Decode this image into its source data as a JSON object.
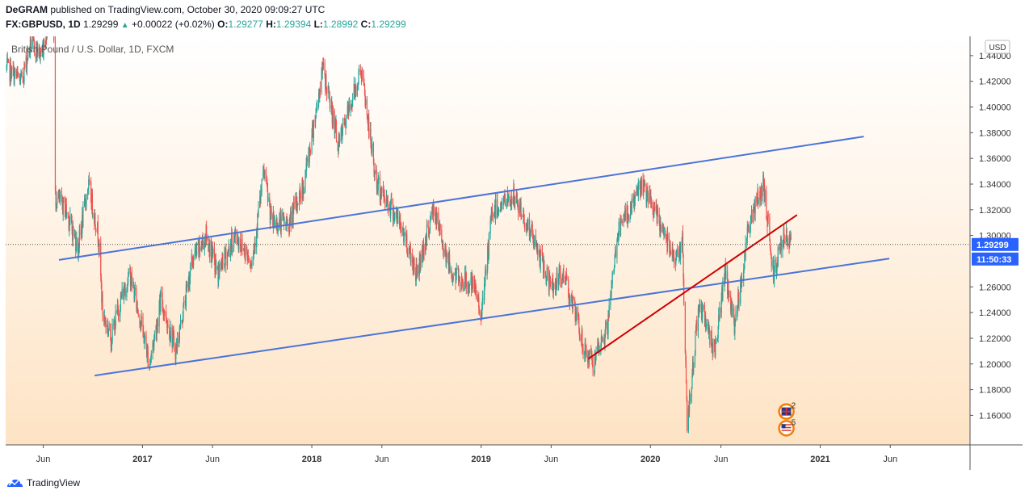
{
  "header": {
    "author": "DeGRAM",
    "published_text": "published on TradingView.com, October 30, 2020 09:09:27 UTC",
    "symbol": "FX:GBPUSD, 1D",
    "last": "1.29299",
    "change": "+0.00022 (+0.02%)",
    "o_label": "O:",
    "o_value": "1.29277",
    "h_label": "H:",
    "h_value": "1.29394",
    "l_label": "L:",
    "l_value": "1.28992",
    "c_label": "C:",
    "c_value": "1.29299"
  },
  "footer": {
    "brand": "TradingView"
  },
  "colors": {
    "bull": "#26a69a",
    "bear": "#ef5350",
    "channel": "#2962ff",
    "trend": "#cc0000",
    "price_badge": "#2962ff"
  },
  "chart_data": {
    "type": "candlestick",
    "title": "British Pound / U.S. Dollar, 1D, FXCM",
    "currency_label": "USD",
    "y_ticks": [
      "1.44000",
      "1.42000",
      "1.40000",
      "1.38000",
      "1.36000",
      "1.34000",
      "1.32000",
      "1.30000",
      "1.26000",
      "1.24000",
      "1.22000",
      "1.20000",
      "1.18000",
      "1.16000"
    ],
    "ylim": [
      1.137,
      1.455
    ],
    "x_ticks": [
      "Jun",
      "2017",
      "Jun",
      "2018",
      "Jun",
      "2019",
      "Jun",
      "2020",
      "Jun",
      "2021",
      "Jun"
    ],
    "x_tick_dates": [
      "2016-06-01",
      "2017-01-01",
      "2017-06-01",
      "2018-01-01",
      "2018-06-01",
      "2019-01-01",
      "2019-06-01",
      "2020-01-01",
      "2020-06-01",
      "2021-01-01",
      "2021-06-01"
    ],
    "xlim": [
      "2016-03-12",
      "2021-11-20"
    ],
    "last_price": "1.29299",
    "countdown": "11:50:33",
    "price_path": [
      [
        "2016-03-14",
        1.43
      ],
      [
        "2016-04-15",
        1.42
      ],
      [
        "2016-05-05",
        1.45
      ],
      [
        "2016-05-28",
        1.44
      ],
      [
        "2016-06-23",
        1.49
      ],
      [
        "2016-06-27",
        1.33
      ],
      [
        "2016-07-20",
        1.32
      ],
      [
        "2016-08-15",
        1.29
      ],
      [
        "2016-09-06",
        1.34
      ],
      [
        "2016-09-28",
        1.3
      ],
      [
        "2016-10-07",
        1.24
      ],
      [
        "2016-10-25",
        1.22
      ],
      [
        "2016-11-15",
        1.25
      ],
      [
        "2016-12-05",
        1.27
      ],
      [
        "2016-12-30",
        1.23
      ],
      [
        "2017-01-16",
        1.2
      ],
      [
        "2017-02-10",
        1.25
      ],
      [
        "2017-03-14",
        1.21
      ],
      [
        "2017-04-18",
        1.28
      ],
      [
        "2017-05-18",
        1.3
      ],
      [
        "2017-06-12",
        1.27
      ],
      [
        "2017-07-20",
        1.3
      ],
      [
        "2017-08-25",
        1.28
      ],
      [
        "2017-09-20",
        1.35
      ],
      [
        "2017-10-06",
        1.31
      ],
      [
        "2017-11-14",
        1.31
      ],
      [
        "2017-12-15",
        1.34
      ],
      [
        "2018-01-25",
        1.43
      ],
      [
        "2018-02-28",
        1.37
      ],
      [
        "2018-04-17",
        1.43
      ],
      [
        "2018-05-20",
        1.34
      ],
      [
        "2018-06-25",
        1.32
      ],
      [
        "2018-07-20",
        1.3
      ],
      [
        "2018-08-15",
        1.27
      ],
      [
        "2018-09-20",
        1.32
      ],
      [
        "2018-10-30",
        1.27
      ],
      [
        "2018-12-15",
        1.26
      ],
      [
        "2019-01-03",
        1.24
      ],
      [
        "2019-01-25",
        1.32
      ],
      [
        "2019-03-13",
        1.33
      ],
      [
        "2019-04-20",
        1.3
      ],
      [
        "2019-05-31",
        1.26
      ],
      [
        "2019-06-30",
        1.27
      ],
      [
        "2019-08-12",
        1.21
      ],
      [
        "2019-09-02",
        1.2
      ],
      [
        "2019-10-01",
        1.23
      ],
      [
        "2019-10-21",
        1.3
      ],
      [
        "2019-12-13",
        1.34
      ],
      [
        "2020-01-20",
        1.31
      ],
      [
        "2020-03-01",
        1.28
      ],
      [
        "2020-03-10",
        1.3
      ],
      [
        "2020-03-20",
        1.15
      ],
      [
        "2020-04-15",
        1.25
      ],
      [
        "2020-05-18",
        1.21
      ],
      [
        "2020-06-10",
        1.27
      ],
      [
        "2020-06-30",
        1.23
      ],
      [
        "2020-08-01",
        1.31
      ],
      [
        "2020-09-01",
        1.34
      ],
      [
        "2020-09-22",
        1.27
      ],
      [
        "2020-10-12",
        1.3
      ],
      [
        "2020-10-30",
        1.293
      ]
    ],
    "drawings": [
      {
        "name": "upper-channel",
        "color": "#4a74d8",
        "points": [
          [
            "2016-07-05",
            1.281
          ],
          [
            "2021-04-05",
            1.377
          ]
        ]
      },
      {
        "name": "lower-channel",
        "color": "#4a74d8",
        "points": [
          [
            "2016-09-20",
            1.191
          ],
          [
            "2021-05-30",
            1.282
          ]
        ]
      },
      {
        "name": "red-trendline",
        "color": "#cc0000",
        "points": [
          [
            "2019-08-20",
            1.204
          ],
          [
            "2020-11-12",
            1.316
          ]
        ]
      }
    ],
    "markers": [
      {
        "name": "uk-flag",
        "date": "2020-10-20",
        "value": 1.163,
        "count": "2"
      },
      {
        "name": "us-flag",
        "date": "2020-10-20",
        "value": 1.15,
        "count": "5"
      }
    ]
  }
}
